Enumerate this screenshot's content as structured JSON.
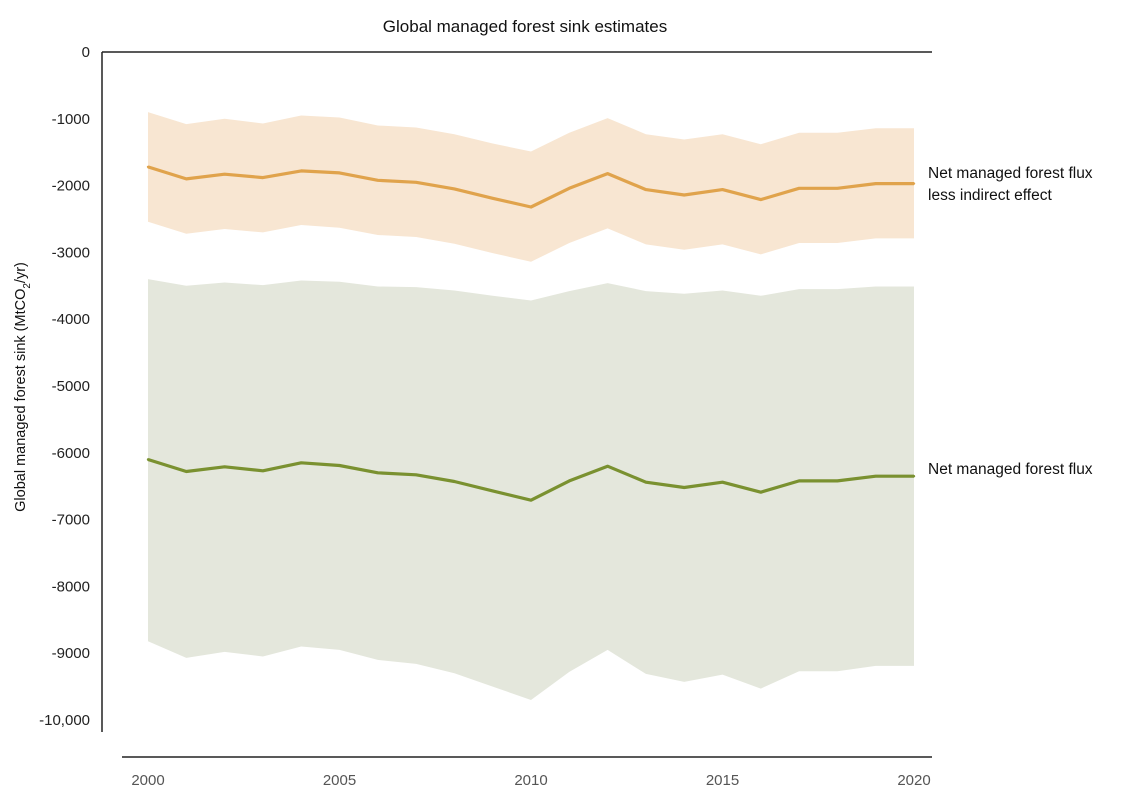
{
  "chart_data": {
    "type": "line",
    "title": "Global managed forest sink estimates",
    "ylabel_main": "Global managed forest sink (MtCO",
    "ylabel_sub": "2",
    "ylabel_end": "/yr)",
    "xlabel": "",
    "x": [
      2000,
      2001,
      2002,
      2003,
      2004,
      2005,
      2006,
      2007,
      2008,
      2009,
      2010,
      2011,
      2012,
      2013,
      2014,
      2015,
      2016,
      2017,
      2018,
      2019,
      2020
    ],
    "xticks": [
      2000,
      2005,
      2010,
      2015,
      2020
    ],
    "xtick_labels": [
      "2000",
      "2005",
      "2010",
      "2015",
      "2020"
    ],
    "xlim": [
      2000,
      2020
    ],
    "ylim": [
      -10000,
      0
    ],
    "yticks": [
      0,
      -1000,
      -2000,
      -3000,
      -4000,
      -5000,
      -6000,
      -7000,
      -8000,
      -9000,
      -10000
    ],
    "ytick_labels": [
      "0",
      "-1000",
      "-2000",
      "-3000",
      "-4000",
      "-5000",
      "-6000",
      "-7000",
      "-8000",
      "-9000",
      "-10,000"
    ],
    "grid": false,
    "series": [
      {
        "name": "Net managed forest flux less indirect effect",
        "label_line1": "Net managed forest flux",
        "label_line2": "less indirect effect",
        "color": "#e0a34c",
        "band_color": "#f8e6d2",
        "values": [
          -1720,
          -1900,
          -1830,
          -1880,
          -1780,
          -1810,
          -1920,
          -1950,
          -2050,
          -2190,
          -2320,
          -2040,
          -1820,
          -2060,
          -2140,
          -2060,
          -2210,
          -2040,
          -2040,
          -1970,
          -1970
        ],
        "upper": [
          -900,
          -1080,
          -1000,
          -1070,
          -950,
          -980,
          -1100,
          -1130,
          -1230,
          -1370,
          -1490,
          -1210,
          -990,
          -1230,
          -1310,
          -1230,
          -1380,
          -1210,
          -1210,
          -1140,
          -1140
        ],
        "lower": [
          -2540,
          -2720,
          -2650,
          -2700,
          -2590,
          -2630,
          -2740,
          -2770,
          -2870,
          -3010,
          -3140,
          -2860,
          -2640,
          -2880,
          -2960,
          -2880,
          -3030,
          -2860,
          -2860,
          -2790,
          -2790
        ]
      },
      {
        "name": "Net managed forest flux",
        "label_line1": "Net managed forest flux",
        "label_line2": "",
        "color": "#7a9130",
        "band_color": "#e4e7dc",
        "values": [
          -6100,
          -6280,
          -6210,
          -6270,
          -6150,
          -6190,
          -6300,
          -6330,
          -6430,
          -6570,
          -6710,
          -6420,
          -6200,
          -6440,
          -6520,
          -6440,
          -6590,
          -6420,
          -6420,
          -6350,
          -6350
        ],
        "upper": [
          -3400,
          -3500,
          -3450,
          -3490,
          -3420,
          -3440,
          -3510,
          -3520,
          -3570,
          -3650,
          -3720,
          -3580,
          -3460,
          -3580,
          -3620,
          -3570,
          -3650,
          -3550,
          -3550,
          -3510,
          -3510
        ],
        "lower": [
          -8820,
          -9070,
          -8980,
          -9050,
          -8900,
          -8950,
          -9100,
          -9160,
          -9300,
          -9500,
          -9700,
          -9280,
          -8950,
          -9310,
          -9430,
          -9320,
          -9530,
          -9270,
          -9270,
          -9190,
          -9190
        ]
      }
    ]
  }
}
